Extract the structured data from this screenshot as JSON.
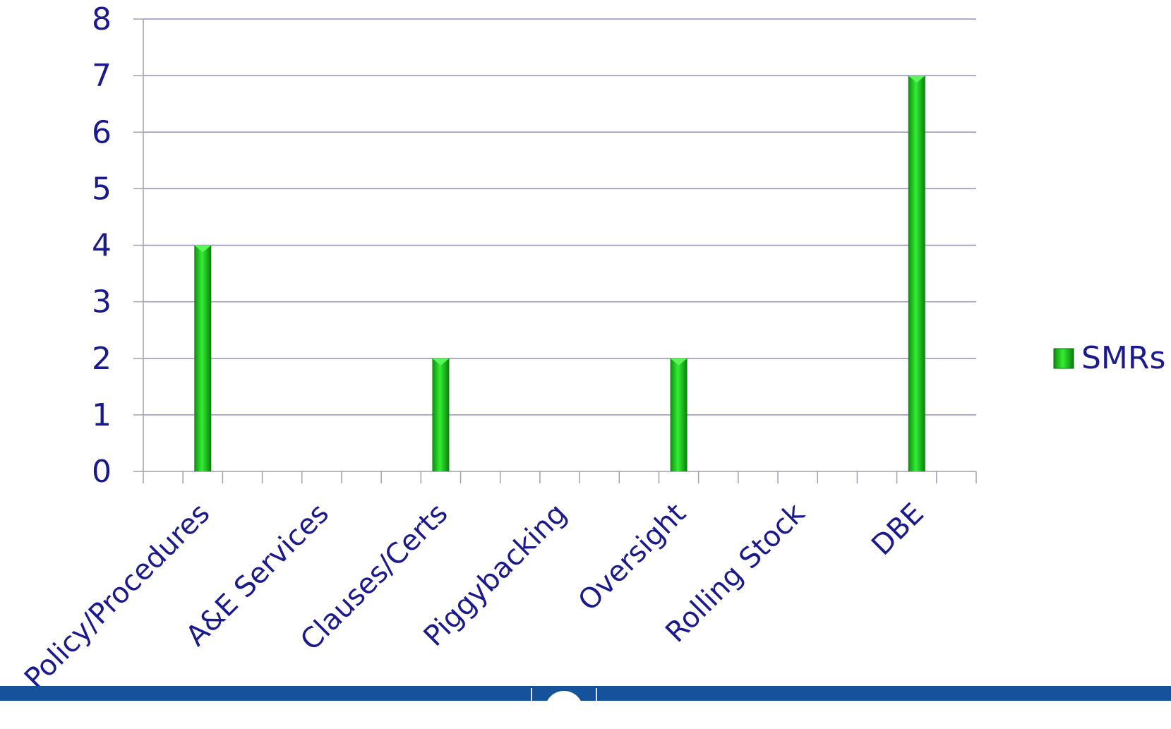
{
  "chart_data": {
    "type": "bar",
    "title": "",
    "xlabel": "",
    "ylabel": "",
    "categories": [
      "Policy/Procedures",
      "A&E Services",
      "Clauses/Certs",
      "Piggybacking",
      "Oversight",
      "Rolling Stock",
      "DBE"
    ],
    "series": [
      {
        "name": "SMRs",
        "values": [
          4,
          0,
          2,
          0,
          2,
          0,
          7
        ],
        "color": "#22cc22"
      }
    ],
    "ylim": [
      0,
      8
    ],
    "yticks": [
      0,
      1,
      2,
      3,
      4,
      5,
      6,
      7,
      8
    ],
    "grid": true,
    "legend_position": "right",
    "colors": {
      "text": "#1a1a8c",
      "grid": "#8f8fc9",
      "axis": "#a0a0b0",
      "footer": "#15529b"
    }
  }
}
